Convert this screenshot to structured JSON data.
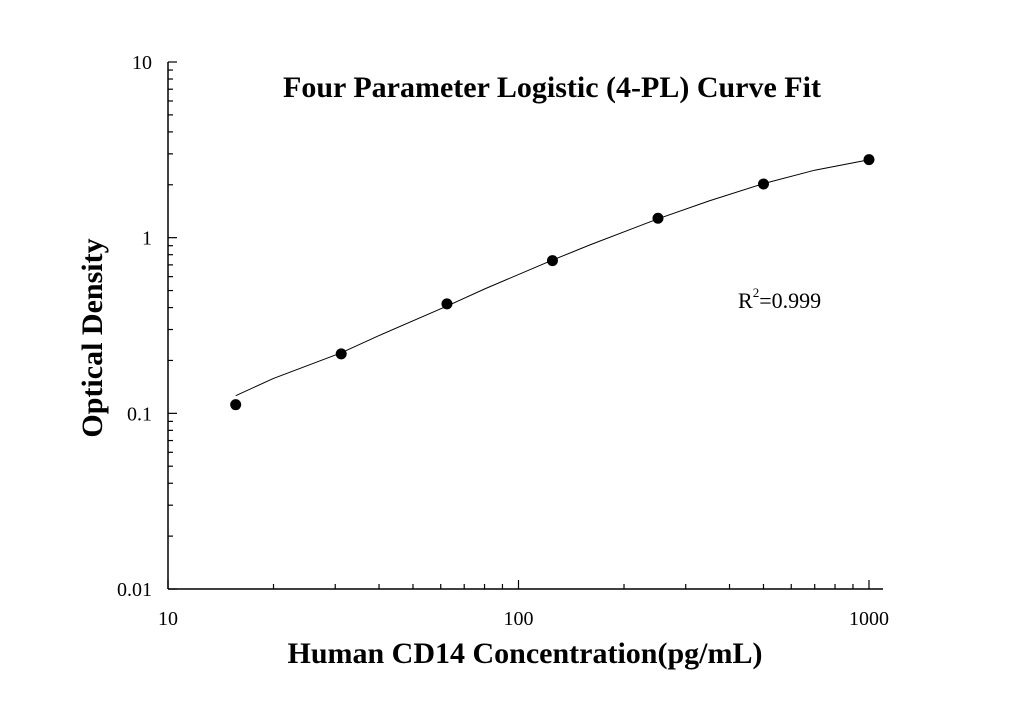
{
  "chart_data": {
    "type": "scatter",
    "title": "Four Parameter Logistic (4-PL) Curve Fit",
    "xlabel": "Human CD14 Concentration(pg/mL)",
    "ylabel": "Optical Density",
    "xscale": "log",
    "yscale": "log",
    "xlim": [
      10,
      1000
    ],
    "ylim": [
      0.01,
      10
    ],
    "x_ticks": [
      "10",
      "100",
      "1000"
    ],
    "y_ticks": [
      "0.01",
      "0.1",
      "1",
      "10"
    ],
    "grid": false,
    "series": [
      {
        "points": [
          {
            "x": 15.6,
            "y": 0.112
          },
          {
            "x": 31.2,
            "y": 0.218
          },
          {
            "x": 62.5,
            "y": 0.42
          },
          {
            "x": 125,
            "y": 0.74
          },
          {
            "x": 250,
            "y": 1.29
          },
          {
            "x": 500,
            "y": 2.02
          },
          {
            "x": 1000,
            "y": 2.78
          }
        ]
      }
    ],
    "fit_curve": {
      "model": "4-PL",
      "points": [
        {
          "x": 15.6,
          "y": 0.126
        },
        {
          "x": 20,
          "y": 0.158
        },
        {
          "x": 31.2,
          "y": 0.221
        },
        {
          "x": 40,
          "y": 0.277
        },
        {
          "x": 62.5,
          "y": 0.408
        },
        {
          "x": 80,
          "y": 0.51
        },
        {
          "x": 125,
          "y": 0.745
        },
        {
          "x": 160,
          "y": 0.91
        },
        {
          "x": 250,
          "y": 1.28
        },
        {
          "x": 350,
          "y": 1.62
        },
        {
          "x": 500,
          "y": 2.03
        },
        {
          "x": 700,
          "y": 2.42
        },
        {
          "x": 1000,
          "y": 2.78
        }
      ]
    },
    "annotations": {
      "r2_base": "R",
      "r2_sup": "2",
      "r2_value": "=0.999"
    }
  }
}
